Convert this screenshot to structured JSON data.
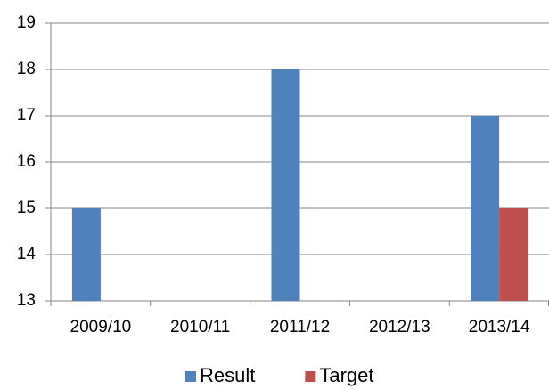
{
  "chart_data": {
    "type": "bar",
    "categories": [
      "2009/10",
      "2010/11",
      "2011/12",
      "2012/13",
      "2013/14"
    ],
    "series": [
      {
        "name": "Result",
        "color": "#4f81bd",
        "values": [
          15,
          null,
          18,
          null,
          17
        ]
      },
      {
        "name": "Target",
        "color": "#c0504d",
        "values": [
          null,
          null,
          null,
          null,
          15
        ]
      }
    ],
    "ylim": [
      13,
      19
    ],
    "yticks": [
      13,
      14,
      15,
      16,
      17,
      18,
      19
    ],
    "grid": true,
    "legend": "bottom"
  }
}
